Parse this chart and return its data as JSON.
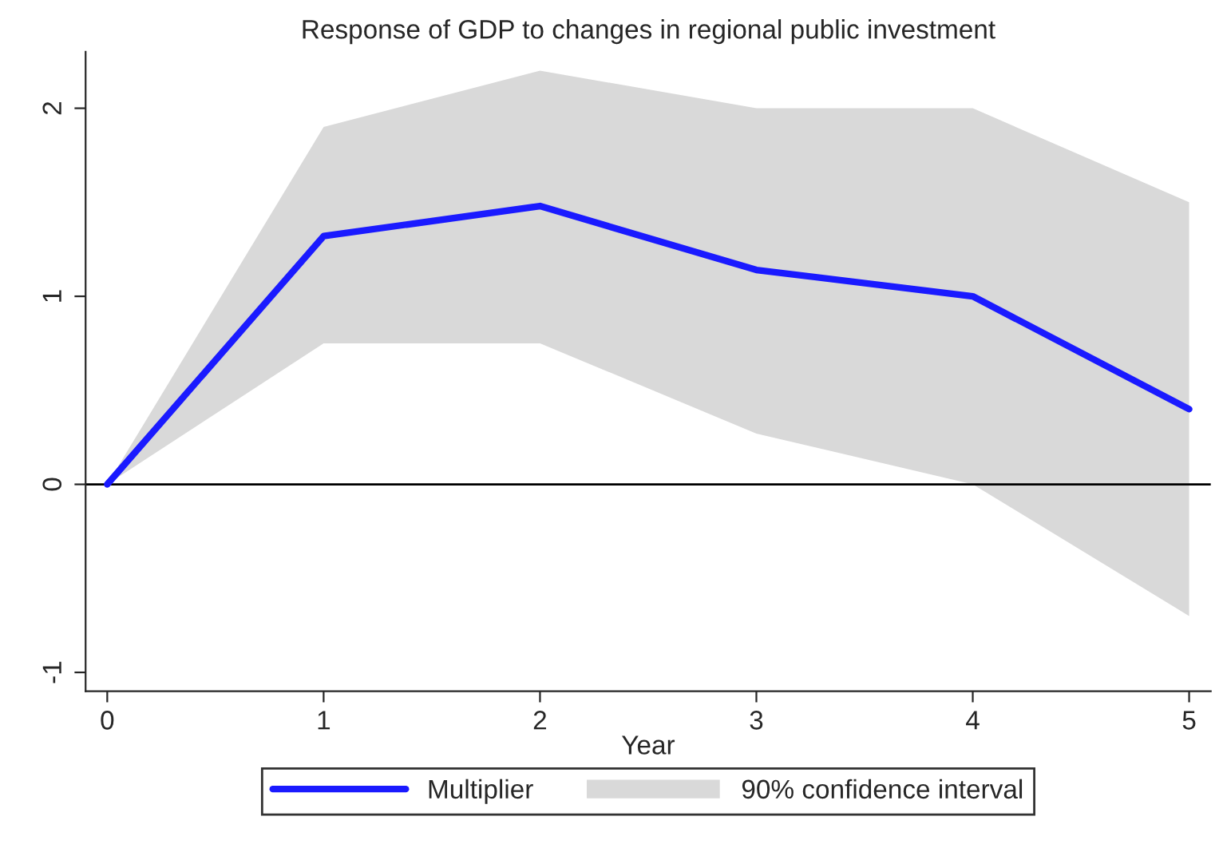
{
  "chart_data": {
    "type": "line",
    "title": "Response of GDP to changes in regional public investment",
    "xlabel": "Year",
    "x": [
      0,
      1,
      2,
      3,
      4,
      5
    ],
    "series": [
      {
        "name": "Multiplier",
        "color": "#1a1aff",
        "values": [
          0,
          1.32,
          1.48,
          1.14,
          1.0,
          0.4
        ],
        "lower": [
          0,
          0.75,
          0.75,
          0.27,
          0.0,
          -0.7
        ],
        "upper": [
          0,
          1.9,
          2.2,
          2.0,
          2.0,
          1.5
        ]
      }
    ],
    "annotations": [
      "90% confidence interval"
    ],
    "xlim": [
      -0.1,
      5.1
    ],
    "xticks": [
      0,
      1,
      2,
      3,
      4,
      5
    ],
    "ylim": [
      -1.1,
      2.3
    ],
    "yticks": [
      -1,
      0,
      1,
      2
    ],
    "ref_lines": [
      {
        "axis": "y",
        "value": 0,
        "color": "#000000"
      }
    ],
    "grid": false,
    "legend": "bottom",
    "marker": "none",
    "line_style": "solid"
  }
}
